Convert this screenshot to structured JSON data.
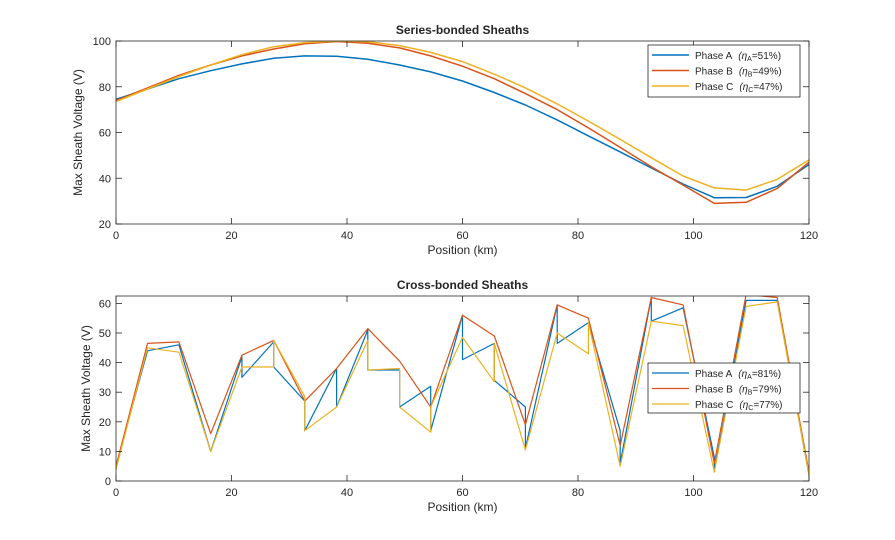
{
  "colors": {
    "A": "#0072BD",
    "B": "#D95319",
    "C": "#EDB120"
  },
  "chart_data": [
    {
      "type": "line",
      "title": "Series-bonded Sheaths",
      "xlabel": "Position (km)",
      "ylabel": "Max Sheath Voltage (V)",
      "xlim": [
        0,
        120
      ],
      "ylim": [
        20,
        100
      ],
      "xticks": [
        "0",
        "20",
        "40",
        "60",
        "80",
        "100",
        "120"
      ],
      "yticks": [
        "20",
        "40",
        "60",
        "80",
        "100"
      ],
      "grid": false,
      "legend_position": "top-right",
      "series": [
        {
          "name": "Phase  A",
          "sub": "A",
          "eta": "=51%",
          "color_key": "A",
          "x": [
            0,
            5.45,
            10.9,
            16.4,
            21.8,
            27.3,
            32.7,
            38.2,
            43.6,
            49.1,
            54.5,
            60,
            65.5,
            70.9,
            76.4,
            81.8,
            87.3,
            92.7,
            98.2,
            103.6,
            109.1,
            114.5,
            120
          ],
          "y": [
            74.5,
            79,
            83.5,
            87,
            90,
            92.5,
            93.5,
            93.3,
            92,
            89.5,
            86.5,
            82.5,
            77.5,
            72,
            65.5,
            58.5,
            51.5,
            44.5,
            37.5,
            31.5,
            31.6,
            36.5,
            46
          ]
        },
        {
          "name": "Phase  B",
          "sub": "B",
          "eta": "=49%",
          "color_key": "B",
          "x": [
            0,
            5.45,
            10.9,
            16.4,
            21.8,
            27.3,
            32.7,
            38.2,
            43.6,
            49.1,
            54.5,
            60,
            65.5,
            70.9,
            76.4,
            81.8,
            87.3,
            92.7,
            98.2,
            103.6,
            109.1,
            114.5,
            120
          ],
          "y": [
            74,
            79.5,
            85,
            89.5,
            93.5,
            96.5,
            98.8,
            99.8,
            99,
            97,
            93.5,
            89,
            83.5,
            77,
            70,
            62,
            53.5,
            45,
            37,
            29,
            29.5,
            35.5,
            47
          ]
        },
        {
          "name": "Phase  C",
          "sub": "C",
          "eta": "=47%",
          "color_key": "C",
          "x": [
            0,
            5.45,
            10.9,
            16.4,
            21.8,
            27.3,
            32.7,
            38.2,
            43.6,
            49.1,
            54.5,
            60,
            65.5,
            70.9,
            76.4,
            81.8,
            87.3,
            92.7,
            98.2,
            103.6,
            109.1,
            114.5,
            120
          ],
          "y": [
            73.5,
            79,
            84.5,
            89.5,
            94,
            97.5,
            99.3,
            100,
            99.7,
            98,
            95,
            91,
            85.5,
            79.5,
            72.5,
            65,
            57,
            49,
            41,
            35.8,
            34.8,
            39.5,
            48
          ]
        }
      ]
    },
    {
      "type": "line",
      "title": "Cross-bonded Sheaths",
      "xlabel": "Position (km)",
      "ylabel": "Max Sheath Voltage (V)",
      "xlim": [
        0,
        120
      ],
      "ylim": [
        0,
        62.5
      ],
      "xticks": [
        "0",
        "20",
        "40",
        "60",
        "80",
        "100",
        "120"
      ],
      "yticks": [
        "0",
        "10",
        "20",
        "30",
        "40",
        "50",
        "60"
      ],
      "grid": false,
      "legend_position": "right",
      "series": [
        {
          "name": "Phase  A",
          "sub": "A",
          "eta": "=81%",
          "color_key": "A",
          "points": [
            [
              0,
              5
            ],
            [
              5.45,
              44
            ],
            [
              10.9,
              46
            ],
            [
              16.4,
              10
            ],
            [
              21.8,
              42
            ],
            [
              21.8,
              35
            ],
            [
              27.3,
              47
            ],
            [
              27.3,
              38.5
            ],
            [
              32.7,
              27
            ],
            [
              32.7,
              17
            ],
            [
              38.2,
              38
            ],
            [
              38.2,
              25
            ],
            [
              43.6,
              51
            ],
            [
              43.6,
              37.5
            ],
            [
              49.1,
              37.5
            ],
            [
              49.1,
              25
            ],
            [
              54.5,
              32
            ],
            [
              54.5,
              17
            ],
            [
              60,
              56
            ],
            [
              60,
              41
            ],
            [
              65.5,
              46.5
            ],
            [
              65.5,
              34
            ],
            [
              70.9,
              25
            ],
            [
              70.9,
              11
            ],
            [
              76.4,
              59.5
            ],
            [
              76.4,
              46.5
            ],
            [
              81.8,
              53.5
            ],
            [
              87.3,
              17
            ],
            [
              87.3,
              6
            ],
            [
              92.7,
              62
            ],
            [
              92.7,
              54
            ],
            [
              98.2,
              58.5
            ],
            [
              103.6,
              8
            ],
            [
              103.6,
              3.5
            ],
            [
              109.1,
              61
            ],
            [
              114.5,
              61
            ],
            [
              120,
              2
            ]
          ]
        },
        {
          "name": "Phase  B",
          "sub": "B",
          "eta": "=79%",
          "color_key": "B",
          "points": [
            [
              0,
              5
            ],
            [
              5.45,
              46.5
            ],
            [
              10.9,
              47
            ],
            [
              16.4,
              16
            ],
            [
              21.8,
              42.5
            ],
            [
              27.3,
              47.5
            ],
            [
              32.7,
              27
            ],
            [
              38.2,
              38
            ],
            [
              43.6,
              51.5
            ],
            [
              49.1,
              40.5
            ],
            [
              54.5,
              25
            ],
            [
              60,
              56
            ],
            [
              65.5,
              49
            ],
            [
              70.9,
              19
            ],
            [
              76.4,
              59.5
            ],
            [
              81.8,
              55
            ],
            [
              87.3,
              12
            ],
            [
              92.7,
              62
            ],
            [
              98.2,
              59.5
            ],
            [
              103.6,
              6
            ],
            [
              109.1,
              63
            ],
            [
              114.5,
              62
            ],
            [
              120,
              3
            ]
          ]
        },
        {
          "name": "Phase  C",
          "sub": "C",
          "eta": "=77%",
          "color_key": "C",
          "points": [
            [
              0,
              4
            ],
            [
              5.45,
              45
            ],
            [
              10.9,
              43.5
            ],
            [
              16.4,
              10
            ],
            [
              21.8,
              38.5
            ],
            [
              27.3,
              38.5
            ],
            [
              27.3,
              47.5
            ],
            [
              32.7,
              28.5
            ],
            [
              32.7,
              17
            ],
            [
              38.2,
              25
            ],
            [
              43.6,
              47.5
            ],
            [
              43.6,
              37.5
            ],
            [
              49.1,
              38
            ],
            [
              49.1,
              25
            ],
            [
              54.5,
              16.5
            ],
            [
              54.5,
              25
            ],
            [
              60,
              48.5
            ],
            [
              65.5,
              33.5
            ],
            [
              65.5,
              46.5
            ],
            [
              70.9,
              10.5
            ],
            [
              76.4,
              50
            ],
            [
              81.8,
              43
            ],
            [
              81.8,
              53.5
            ],
            [
              87.3,
              5
            ],
            [
              92.7,
              54
            ],
            [
              98.2,
              52.5
            ],
            [
              103.6,
              3
            ],
            [
              109.1,
              59
            ],
            [
              114.5,
              60.5
            ],
            [
              120,
              2
            ]
          ]
        }
      ]
    }
  ]
}
